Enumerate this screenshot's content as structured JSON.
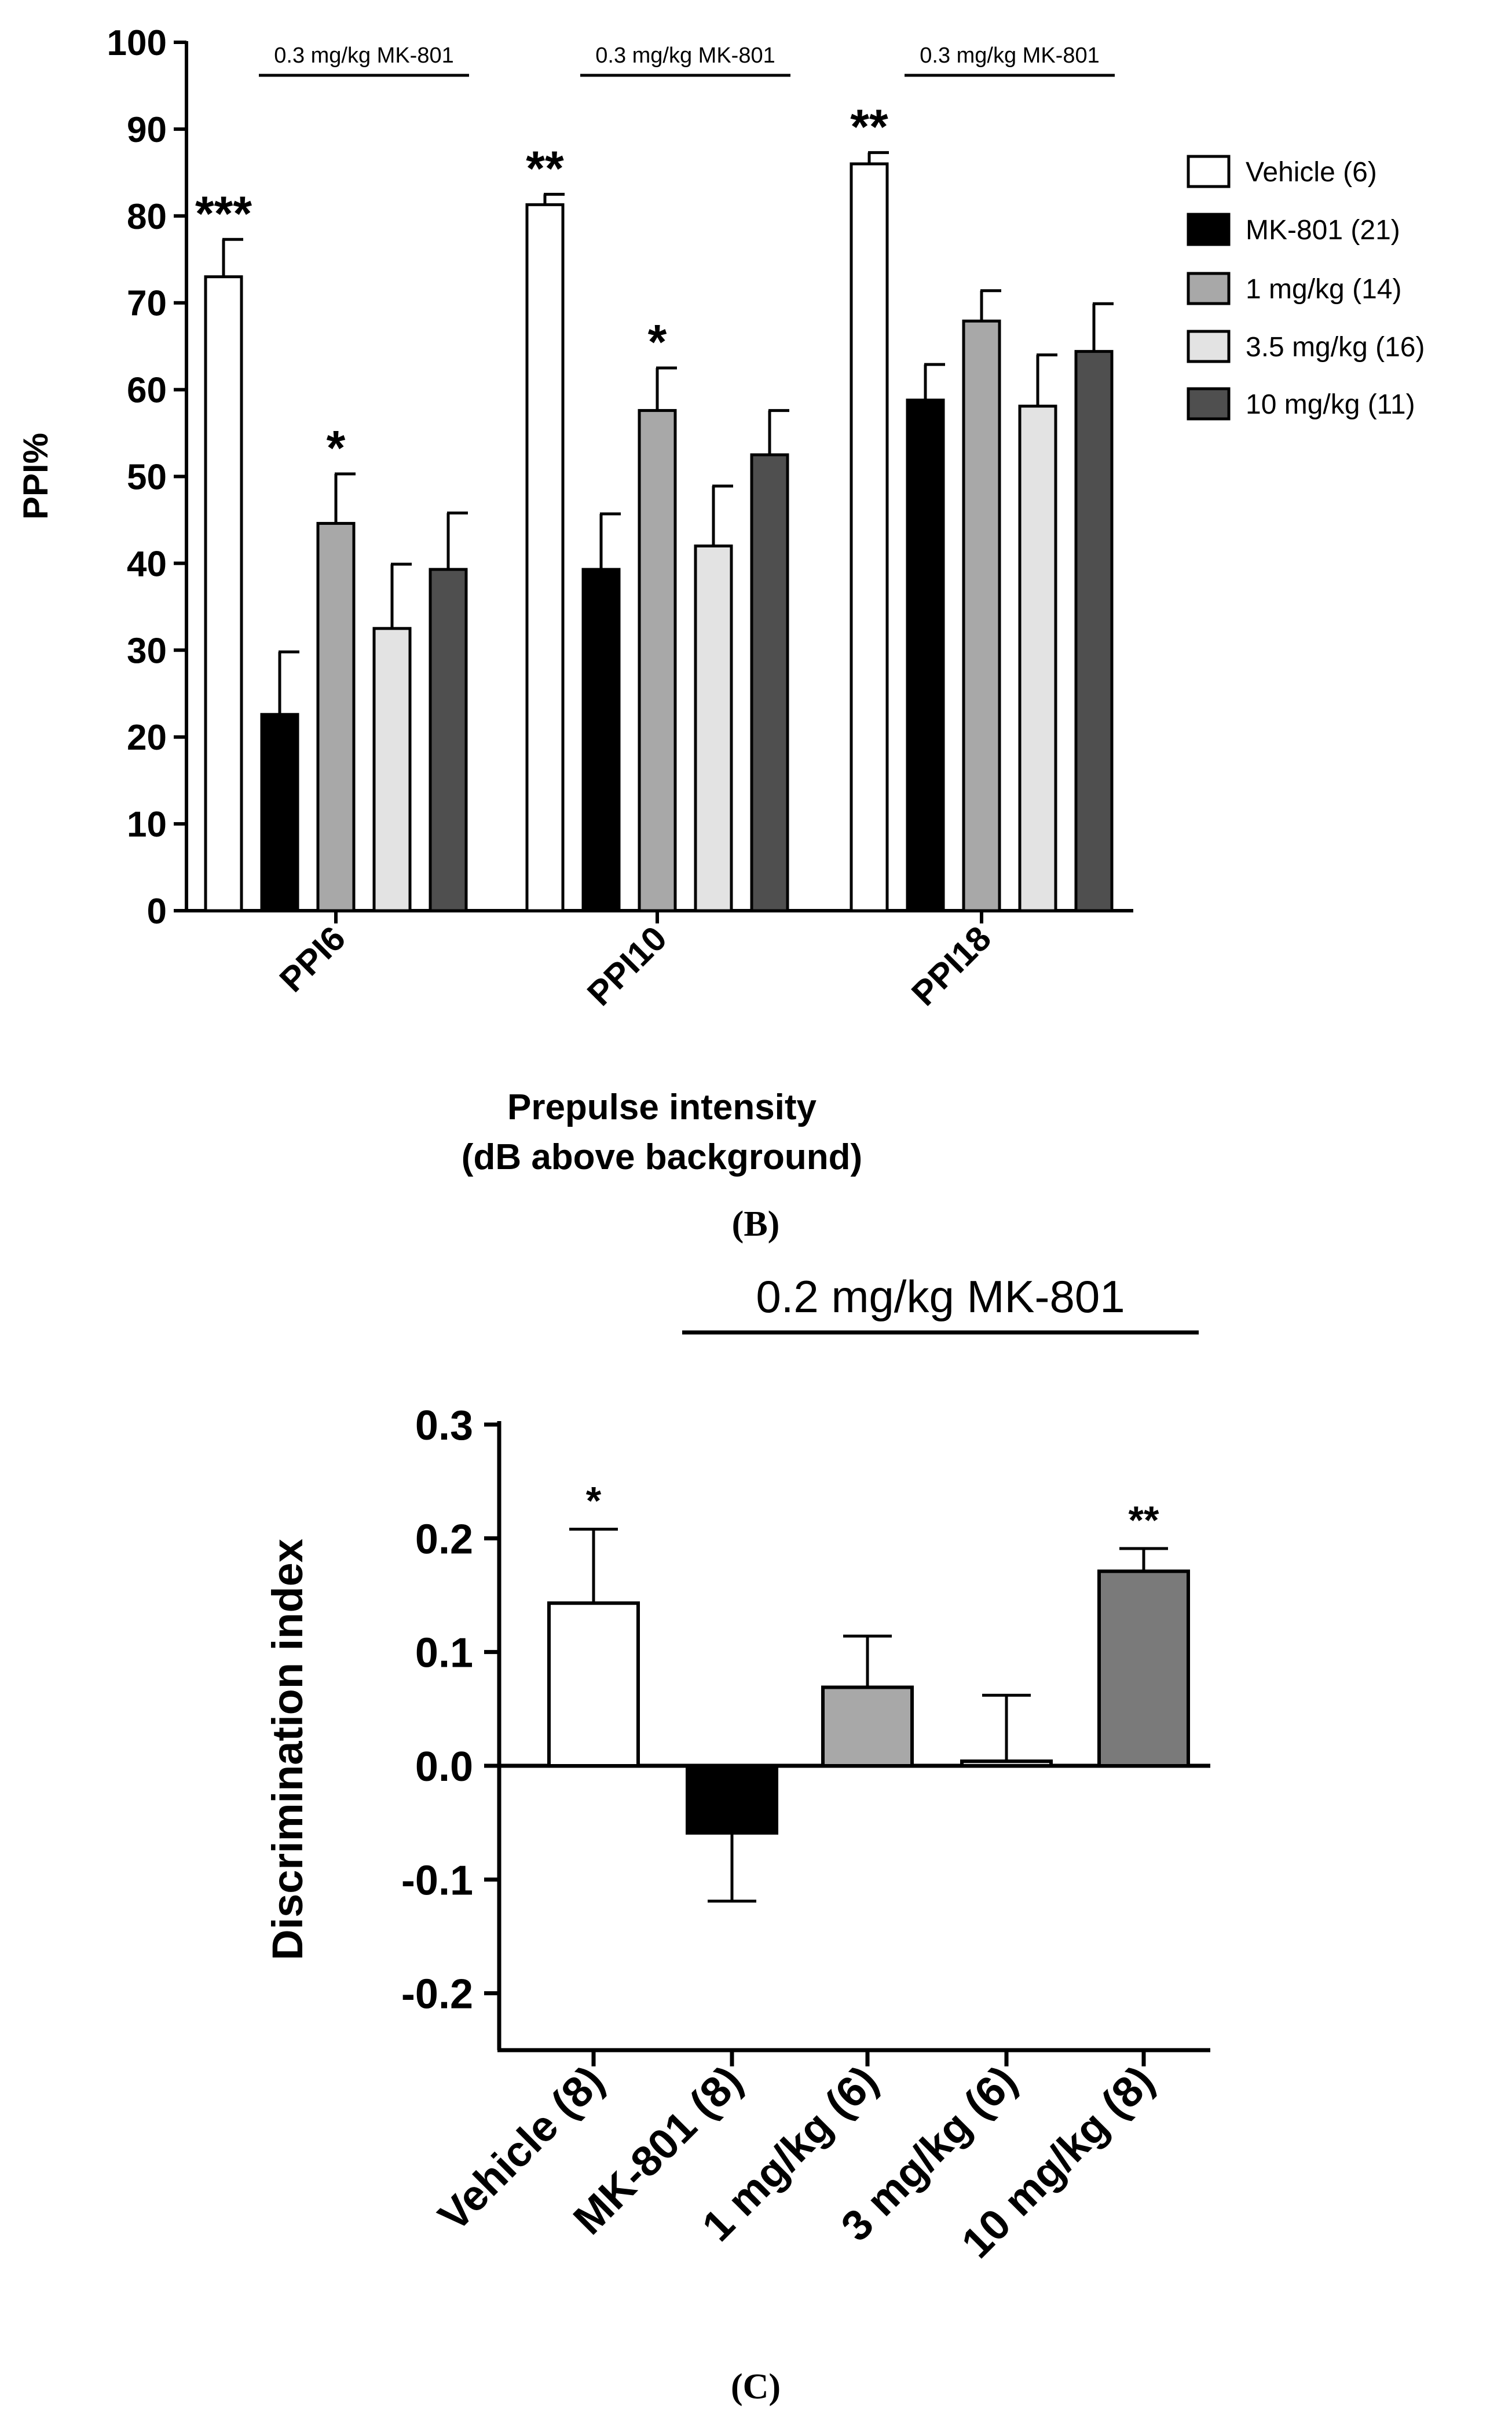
{
  "chart_data": [
    {
      "type": "bar",
      "panel": "B",
      "ylabel": "PPI%",
      "xlabel": "Prepulse intensity",
      "xlabel2": "(dB above background)",
      "caption": "(B)",
      "ylim": [
        0,
        100
      ],
      "yticks": [
        "0",
        "10",
        "20",
        "30",
        "40",
        "50",
        "60",
        "70",
        "80",
        "90",
        "100"
      ],
      "categories": [
        "PPI6",
        "PPI10",
        "PPI18"
      ],
      "bracket_label": "0.3 mg/kg MK-801",
      "series": [
        {
          "name": "Vehicle (6)",
          "color": "#ffffff",
          "values": [
            73,
            81.3,
            86
          ],
          "errors": [
            4.3,
            1.2,
            1.3
          ]
        },
        {
          "name": "MK-801 (21)",
          "color": "#000000",
          "values": [
            22.6,
            39.3,
            58.8
          ],
          "errors": [
            7.2,
            6.4,
            4.1
          ]
        },
        {
          "name": "1 mg/kg (14)",
          "color": "#a8a8a8",
          "values": [
            44.6,
            57.6,
            67.9
          ],
          "errors": [
            5.7,
            4.9,
            3.5
          ]
        },
        {
          "name": "3.5 mg/kg (16)",
          "color": "#e3e3e3",
          "values": [
            32.5,
            42,
            58.1
          ],
          "errors": [
            7.4,
            6.9,
            5.9
          ]
        },
        {
          "name": "10 mg/kg (11)",
          "color": "#4f4f4f",
          "values": [
            39.3,
            52.5,
            64.4
          ],
          "errors": [
            6.5,
            5.1,
            5.5
          ]
        }
      ],
      "significance": [
        {
          "category": 0,
          "series": 0,
          "label": "***"
        },
        {
          "category": 0,
          "series": 2,
          "label": "*"
        },
        {
          "category": 1,
          "series": 0,
          "label": "**"
        },
        {
          "category": 1,
          "series": 2,
          "label": "*"
        },
        {
          "category": 2,
          "series": 0,
          "label": "**"
        }
      ]
    },
    {
      "type": "bar",
      "panel": "C",
      "ylabel": "Discrimination index",
      "caption": "(C)",
      "ylim": [
        -0.25,
        0.3
      ],
      "yticks": [
        "-0.2",
        "-0.1",
        "0.0",
        "0.1",
        "0.2",
        "0.3"
      ],
      "bracket_label": "0.2 mg/kg MK-801",
      "categories": [
        "Vehicle (8)",
        "MK-801 (8)",
        "1 mg/kg (6)",
        "3 mg/kg (6)",
        "10 mg/kg (8)"
      ],
      "values": [
        0.143,
        -0.059,
        0.069,
        0.004,
        0.171
      ],
      "errors": [
        0.065,
        0.06,
        0.045,
        0.058,
        0.02
      ],
      "colors": [
        "#ffffff",
        "#000000",
        "#a8a8a8",
        "#dcdcdc",
        "#7a7a7a"
      ],
      "significance": [
        {
          "index": 0,
          "label": "*"
        },
        {
          "index": 4,
          "label": "**"
        }
      ]
    }
  ]
}
